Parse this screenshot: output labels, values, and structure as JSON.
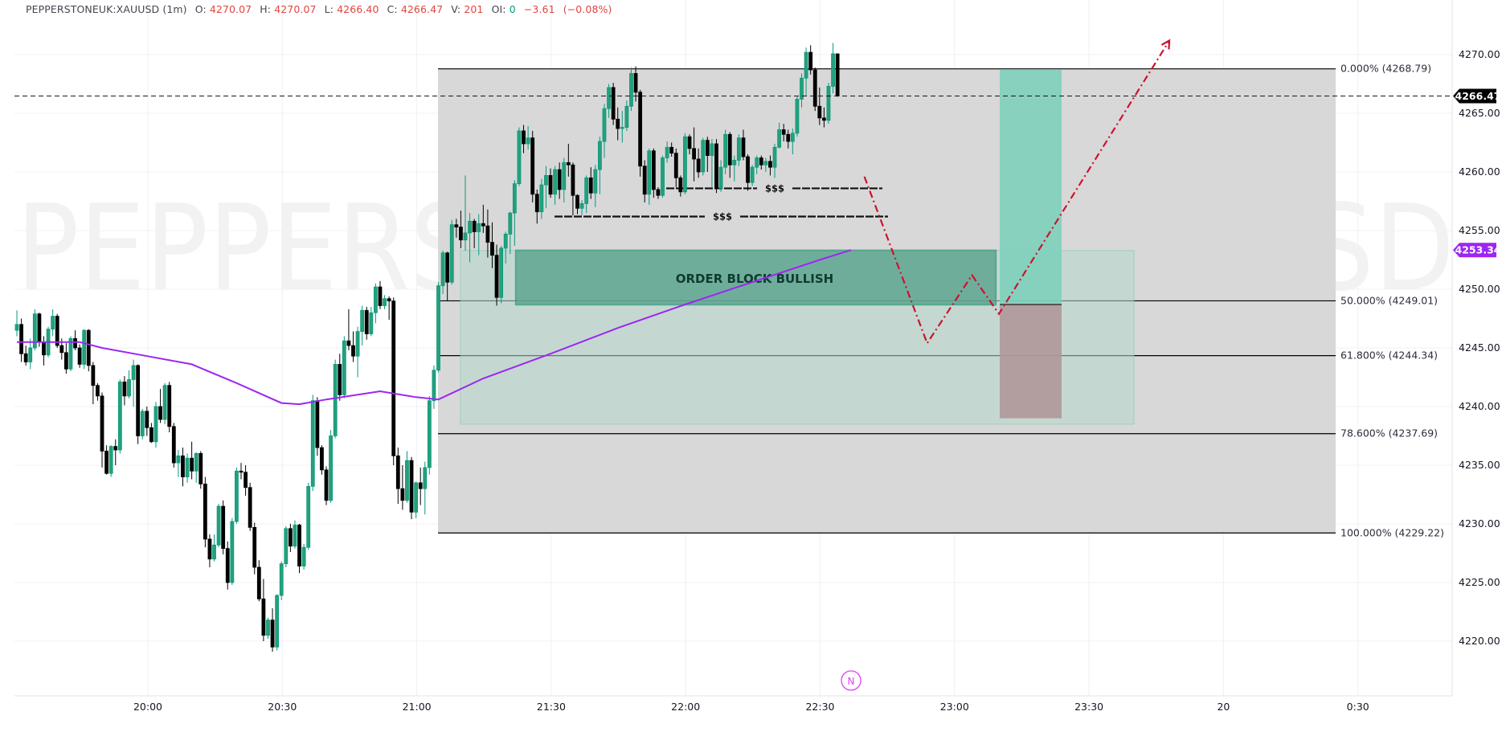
{
  "header": {
    "symbol": "PEPPERSTONEUK:XAUUSD (1m)",
    "open_label": "O:",
    "open": "4270.07",
    "high_label": "H:",
    "high": "4270.07",
    "low_label": "L:",
    "low": "4266.40",
    "close_label": "C:",
    "close": "4266.47",
    "volume_label": "V:",
    "volume": "201",
    "oi_label": "OI:",
    "oi": "0",
    "change": "−3.61",
    "change_pct": "(−0.08%)"
  },
  "watermark": {
    "symbol_text": "PEPPERSTONEUK · XAUUSD",
    "interval_text": "1m"
  },
  "colors": {
    "up": "#089981",
    "up_fill": "#26a07a",
    "down": "#000000",
    "ma": "#9c27f0",
    "fib_zone": "#d6d6d6",
    "order_block": "#5aa38e",
    "ob_zone": "#b4d8cd",
    "long_target": "#7fd0bb",
    "long_stop": "#b09898",
    "projection": "#cc1230",
    "price_tag": "#000000",
    "ma_tag": "#9c27f0"
  },
  "price_axis": {
    "ticks": [
      "4270.00",
      "4265.00",
      "4260.00",
      "4255.00",
      "4250.00",
      "4245.00",
      "4240.00",
      "4235.00",
      "4230.00",
      "4225.00",
      "4220.00"
    ],
    "current_price_tag": "4266.47",
    "ma_tag": "4253.34"
  },
  "time_axis": {
    "ticks": [
      "20:00",
      "20:30",
      "21:00",
      "21:30",
      "22:00",
      "22:30",
      "23:00",
      "23:30",
      "20",
      "0:30"
    ]
  },
  "annotations": {
    "order_block_label": "ORDER BLOCK BULLISH",
    "liquidity_labels": [
      "$$$",
      "$$$"
    ],
    "fib_levels": [
      {
        "label": "0.000% (4268.79)",
        "price": 4268.79
      },
      {
        "label": "50.000% (4249.01)",
        "price": 4249.01
      },
      {
        "label": "61.800% (4244.34)",
        "price": 4244.34
      },
      {
        "label": "78.600% (4237.69)",
        "price": 4237.69
      },
      {
        "label": "100.000% (4229.22)",
        "price": 4229.22
      }
    ],
    "news_marker": "N"
  },
  "chart_data": {
    "type": "candlestick",
    "title": "PEPPERSTONEUK:XAUUSD (1m)",
    "xlabel": "",
    "ylabel": "",
    "ylim": [
      4217,
      4274
    ],
    "x_start": "19:31",
    "interval_minutes": 1,
    "grid": true,
    "legend_position": "top-left",
    "fibonacci_retracement": {
      "from": 4268.79,
      "to": 4229.22,
      "levels": {
        "0.000%": 4268.79,
        "50.000%": 4249.01,
        "61.800%": 4244.34,
        "78.600%": 4237.69,
        "100.000%": 4229.22
      }
    },
    "moving_average_last": 4253.34,
    "last_close": 4266.47,
    "order_block": {
      "label": "ORDER BLOCK BULLISH",
      "top": 4253.3,
      "bottom": 4248.7,
      "start": "21:23",
      "end": "23:10"
    },
    "liquidity_levels": [
      {
        "label": "$$$",
        "price": 4258.6
      },
      {
        "label": "$$$",
        "price": 4256.2
      }
    ],
    "long_position": {
      "entry": 4248.7,
      "target": 4268.7,
      "stop": 4239.0,
      "start": "23:11",
      "end": "23:23"
    },
    "projection_path": [
      [
        "22:40",
        4259.6
      ],
      [
        "22:54",
        4245.4
      ],
      [
        "23:04",
        4251.2
      ],
      [
        "23:10",
        4247.9
      ],
      [
        "23:48",
        4271.2
      ]
    ],
    "candles": [
      [
        4246.5,
        4248.2,
        4246.0,
        4247.0
      ],
      [
        4247.0,
        4247.5,
        4243.8,
        4244.5
      ],
      [
        4244.5,
        4245.2,
        4243.5,
        4243.8
      ],
      [
        4243.8,
        4245.8,
        4243.2,
        4245.0
      ],
      [
        4245.0,
        4248.3,
        4244.8,
        4247.9
      ],
      [
        4247.9,
        4248.0,
        4245.1,
        4245.5
      ],
      [
        4245.5,
        4246.0,
        4243.5,
        4244.4
      ],
      [
        4244.4,
        4246.8,
        4244.2,
        4246.6
      ],
      [
        4246.6,
        4248.3,
        4246.0,
        4247.7
      ],
      [
        4247.7,
        4247.9,
        4245.0,
        4245.2
      ],
      [
        4245.2,
        4245.8,
        4244.0,
        4244.6
      ],
      [
        4244.6,
        4245.4,
        4242.8,
        4243.2
      ],
      [
        4243.2,
        4246.0,
        4243.0,
        4245.8
      ],
      [
        4245.8,
        4246.5,
        4244.8,
        4245.0
      ],
      [
        4245.0,
        4245.3,
        4243.3,
        4243.6
      ],
      [
        4243.6,
        4246.6,
        4243.2,
        4246.5
      ],
      [
        4246.5,
        4246.6,
        4243.0,
        4243.5
      ],
      [
        4243.5,
        4243.8,
        4240.2,
        4241.8
      ],
      [
        4241.8,
        4242.0,
        4240.5,
        4240.9
      ],
      [
        4240.9,
        4241.2,
        4234.8,
        4236.2
      ],
      [
        4236.2,
        4236.7,
        4234.2,
        4234.3
      ],
      [
        4234.3,
        4236.7,
        4234.0,
        4236.6
      ],
      [
        4236.6,
        4237.2,
        4235.0,
        4236.3
      ],
      [
        4236.3,
        4242.3,
        4236.0,
        4242.1
      ],
      [
        4242.1,
        4242.6,
        4240.1,
        4240.9
      ],
      [
        4240.9,
        4243.1,
        4240.7,
        4242.3
      ],
      [
        4242.3,
        4244.0,
        4240.0,
        4243.5
      ],
      [
        4243.5,
        4243.6,
        4236.8,
        4237.5
      ],
      [
        4237.5,
        4239.8,
        4237.2,
        4239.6
      ],
      [
        4239.6,
        4240.0,
        4237.5,
        4238.2
      ],
      [
        4238.2,
        4238.6,
        4236.9,
        4237.0
      ],
      [
        4237.0,
        4240.4,
        4236.5,
        4240.0
      ],
      [
        4240.0,
        4241.5,
        4238.6,
        4238.9
      ],
      [
        4238.9,
        4242.0,
        4238.5,
        4241.8
      ],
      [
        4241.8,
        4242.1,
        4237.8,
        4238.3
      ],
      [
        4238.3,
        4238.6,
        4234.8,
        4235.2
      ],
      [
        4235.2,
        4236.3,
        4234.0,
        4235.8
      ],
      [
        4235.8,
        4236.5,
        4233.2,
        4234.0
      ],
      [
        4234.0,
        4236.0,
        4233.5,
        4235.6
      ],
      [
        4235.6,
        4237.0,
        4233.8,
        4234.5
      ],
      [
        4234.5,
        4236.1,
        4233.5,
        4236.0
      ],
      [
        4236.0,
        4236.2,
        4233.0,
        4233.4
      ],
      [
        4233.4,
        4234.0,
        4228.0,
        4228.7
      ],
      [
        4228.7,
        4229.1,
        4226.3,
        4227.0
      ],
      [
        4227.0,
        4229.1,
        4226.8,
        4228.2
      ],
      [
        4228.2,
        4231.7,
        4228.0,
        4231.5
      ],
      [
        4231.5,
        4232.0,
        4227.4,
        4227.9
      ],
      [
        4227.9,
        4228.5,
        4224.4,
        4225.0
      ],
      [
        4225.0,
        4230.5,
        4224.8,
        4230.2
      ],
      [
        4230.2,
        4234.8,
        4230.0,
        4234.5
      ],
      [
        4234.5,
        4235.2,
        4233.8,
        4234.4
      ],
      [
        4234.4,
        4235.0,
        4232.4,
        4233.1
      ],
      [
        4233.1,
        4233.5,
        4229.4,
        4229.7
      ],
      [
        4229.7,
        4230.1,
        4225.7,
        4226.3
      ],
      [
        4226.3,
        4226.9,
        4223.4,
        4223.6
      ],
      [
        4223.6,
        4225.3,
        4220.0,
        4220.5
      ],
      [
        4220.5,
        4222.0,
        4220.2,
        4221.8
      ],
      [
        4221.8,
        4222.8,
        4219.1,
        4219.5
      ],
      [
        4219.5,
        4224.0,
        4219.2,
        4223.9
      ],
      [
        4223.9,
        4226.8,
        4223.5,
        4226.6
      ],
      [
        4226.6,
        4229.8,
        4226.3,
        4229.6
      ],
      [
        4229.6,
        4230.0,
        4227.6,
        4228.1
      ],
      [
        4228.1,
        4230.3,
        4227.9,
        4229.9
      ],
      [
        4229.9,
        4230.0,
        4225.8,
        4226.4
      ],
      [
        4226.4,
        4228.3,
        4226.1,
        4228.0
      ],
      [
        4228.0,
        4233.5,
        4227.8,
        4233.2
      ],
      [
        4233.2,
        4241.0,
        4232.8,
        4240.5
      ],
      [
        4240.5,
        4240.8,
        4235.8,
        4236.5
      ],
      [
        4236.5,
        4236.7,
        4234.2,
        4234.6
      ],
      [
        4234.6,
        4234.9,
        4231.6,
        4232.0
      ],
      [
        4232.0,
        4238.0,
        4231.8,
        4237.5
      ],
      [
        4237.5,
        4244.0,
        4237.3,
        4243.6
      ],
      [
        4243.6,
        4244.5,
        4240.5,
        4241.0
      ],
      [
        4241.0,
        4246.0,
        4240.7,
        4245.6
      ],
      [
        4245.6,
        4248.3,
        4244.8,
        4245.2
      ],
      [
        4245.2,
        4246.4,
        4243.8,
        4244.3
      ],
      [
        4244.3,
        4246.8,
        4242.5,
        4246.4
      ],
      [
        4246.4,
        4248.6,
        4245.2,
        4248.2
      ],
      [
        4248.2,
        4248.5,
        4245.7,
        4246.2
      ],
      [
        4246.2,
        4248.5,
        4246.0,
        4248.0
      ],
      [
        4248.0,
        4250.5,
        4247.1,
        4250.2
      ],
      [
        4250.2,
        4250.7,
        4248.3,
        4248.6
      ],
      [
        4248.6,
        4249.5,
        4248.3,
        4249.2
      ],
      [
        4249.2,
        4249.4,
        4247.4,
        4249.0
      ],
      [
        4249.0,
        4249.3,
        4235.0,
        4235.8
      ],
      [
        4235.8,
        4236.5,
        4231.7,
        4233.0
      ],
      [
        4233.0,
        4235.0,
        4231.2,
        4232.0
      ],
      [
        4232.0,
        4236.2,
        4231.8,
        4235.4
      ],
      [
        4235.4,
        4235.7,
        4230.4,
        4231.0
      ],
      [
        4231.0,
        4233.6,
        4230.5,
        4233.5
      ],
      [
        4233.5,
        4234.8,
        4231.6,
        4233.0
      ],
      [
        4233.0,
        4235.3,
        4230.8,
        4234.8
      ],
      [
        4234.8,
        4240.9,
        4234.2,
        4240.5
      ],
      [
        4240.5,
        4243.5,
        4239.8,
        4243.1
      ],
      [
        4243.1,
        4250.6,
        4242.9,
        4250.3
      ],
      [
        4250.3,
        4253.3,
        4249.6,
        4253.1
      ],
      [
        4253.1,
        4253.2,
        4249.0,
        4250.6
      ],
      [
        4250.6,
        4255.9,
        4250.4,
        4255.5
      ],
      [
        4255.5,
        4256.0,
        4254.4,
        4255.3
      ],
      [
        4255.3,
        4256.7,
        4253.5,
        4254.2
      ],
      [
        4254.2,
        4259.7,
        4253.3,
        4254.8
      ],
      [
        4254.8,
        4256.5,
        4252.3,
        4255.8
      ],
      [
        4255.8,
        4256.0,
        4253.5,
        4254.9
      ],
      [
        4254.9,
        4256.4,
        4252.9,
        4255.6
      ],
      [
        4255.6,
        4257.2,
        4254.8,
        4255.4
      ],
      [
        4255.4,
        4256.8,
        4252.7,
        4254.0
      ],
      [
        4254.0,
        4255.7,
        4251.8,
        4252.9
      ],
      [
        4252.9,
        4253.8,
        4248.6,
        4249.3
      ],
      [
        4249.3,
        4253.7,
        4248.8,
        4253.5
      ],
      [
        4253.5,
        4254.9,
        4252.2,
        4254.7
      ],
      [
        4254.7,
        4256.6,
        4253.0,
        4256.5
      ],
      [
        4256.5,
        4259.3,
        4253.7,
        4259.0
      ],
      [
        4259.0,
        4263.8,
        4258.8,
        4263.5
      ],
      [
        4263.5,
        4264.0,
        4261.6,
        4262.4
      ],
      [
        4262.4,
        4263.9,
        4261.9,
        4262.9
      ],
      [
        4262.9,
        4263.5,
        4257.4,
        4258.1
      ],
      [
        4258.1,
        4258.5,
        4255.6,
        4256.6
      ],
      [
        4256.6,
        4259.4,
        4256.0,
        4258.9
      ],
      [
        4258.9,
        4260.5,
        4256.9,
        4259.7
      ],
      [
        4259.7,
        4260.3,
        4257.8,
        4258.1
      ],
      [
        4258.1,
        4260.5,
        4257.2,
        4260.2
      ],
      [
        4260.2,
        4260.8,
        4257.7,
        4258.5
      ],
      [
        4258.5,
        4261.2,
        4257.4,
        4260.8
      ],
      [
        4260.8,
        4262.4,
        4259.6,
        4260.6
      ],
      [
        4260.6,
        4260.8,
        4256.3,
        4258.0
      ],
      [
        4258.0,
        4258.1,
        4256.4,
        4256.9
      ],
      [
        4256.9,
        4257.6,
        4256.3,
        4257.3
      ],
      [
        4257.3,
        4259.7,
        4256.5,
        4259.5
      ],
      [
        4259.5,
        4260.4,
        4257.7,
        4258.2
      ],
      [
        4258.2,
        4260.6,
        4257.0,
        4260.2
      ],
      [
        4260.2,
        4263.0,
        4258.1,
        4262.6
      ],
      [
        4262.6,
        4265.8,
        4261.2,
        4265.4
      ],
      [
        4265.4,
        4267.5,
        4264.6,
        4267.2
      ],
      [
        4267.2,
        4267.6,
        4264.0,
        4264.5
      ],
      [
        4264.5,
        4265.5,
        4262.7,
        4263.7
      ],
      [
        4263.7,
        4265.2,
        4262.5,
        4263.8
      ],
      [
        4263.8,
        4266.1,
        4263.5,
        4265.6
      ],
      [
        4265.6,
        4268.9,
        4265.2,
        4268.4
      ],
      [
        4268.4,
        4269.0,
        4266.0,
        4266.8
      ],
      [
        4266.8,
        4267.0,
        4259.6,
        4260.5
      ],
      [
        4260.5,
        4261.0,
        4257.4,
        4258.1
      ],
      [
        4258.1,
        4262.0,
        4257.2,
        4261.8
      ],
      [
        4261.8,
        4262.0,
        4257.8,
        4258.5
      ],
      [
        4258.5,
        4258.7,
        4257.7,
        4258.0
      ],
      [
        4258.0,
        4261.4,
        4257.8,
        4261.2
      ],
      [
        4261.2,
        4262.6,
        4260.8,
        4262.1
      ],
      [
        4262.1,
        4262.5,
        4261.3,
        4261.6
      ],
      [
        4261.6,
        4262.0,
        4258.7,
        4259.5
      ],
      [
        4259.5,
        4259.7,
        4257.9,
        4258.3
      ],
      [
        4258.3,
        4263.3,
        4258.1,
        4263.0
      ],
      [
        4263.0,
        4263.2,
        4261.5,
        4262.0
      ],
      [
        4262.0,
        4263.8,
        4259.2,
        4261.1
      ],
      [
        4261.1,
        4262.0,
        4259.5,
        4260.0
      ],
      [
        4260.0,
        4262.9,
        4259.7,
        4262.7
      ],
      [
        4262.7,
        4263.0,
        4260.0,
        4261.4
      ],
      [
        4261.4,
        4262.8,
        4258.7,
        4262.4
      ],
      [
        4262.4,
        4262.8,
        4258.2,
        4258.6
      ],
      [
        4258.6,
        4261.0,
        4258.3,
        4260.4
      ],
      [
        4260.4,
        4263.6,
        4259.8,
        4263.2
      ],
      [
        4263.2,
        4263.4,
        4259.5,
        4260.6
      ],
      [
        4260.6,
        4261.4,
        4259.2,
        4261.0
      ],
      [
        4261.0,
        4263.2,
        4260.5,
        4262.9
      ],
      [
        4262.9,
        4263.6,
        4261.0,
        4261.3
      ],
      [
        4261.3,
        4261.5,
        4258.4,
        4259.1
      ],
      [
        4259.1,
        4260.6,
        4258.8,
        4260.4
      ],
      [
        4260.4,
        4261.4,
        4259.8,
        4261.2
      ],
      [
        4261.2,
        4261.4,
        4260.2,
        4260.6
      ],
      [
        4260.6,
        4261.2,
        4260.0,
        4260.9
      ],
      [
        4260.9,
        4261.4,
        4259.7,
        4260.4
      ],
      [
        4260.4,
        4262.4,
        4259.5,
        4262.1
      ],
      [
        4262.1,
        4264.2,
        4262.0,
        4263.6
      ],
      [
        4263.6,
        4264.1,
        4262.6,
        4263.2
      ],
      [
        4263.2,
        4263.6,
        4262.0,
        4262.6
      ],
      [
        4262.6,
        4263.7,
        4261.5,
        4263.3
      ],
      [
        4263.3,
        4266.5,
        4263.0,
        4266.2
      ],
      [
        4266.2,
        4268.4,
        4265.5,
        4268.0
      ],
      [
        4268.0,
        4270.6,
        4266.5,
        4270.2
      ],
      [
        4270.2,
        4270.8,
        4268.3,
        4268.7
      ],
      [
        4268.7,
        4268.9,
        4265.2,
        4265.6
      ],
      [
        4265.6,
        4267.2,
        4264.0,
        4264.6
      ],
      [
        4264.6,
        4265.5,
        4263.8,
        4264.4
      ],
      [
        4264.4,
        4267.6,
        4264.1,
        4267.3
      ],
      [
        4267.3,
        4271.0,
        4266.7,
        4270.07
      ],
      [
        4270.07,
        4270.07,
        4266.4,
        4266.47
      ]
    ],
    "ma_points": [
      [
        "19:31",
        4245.5
      ],
      [
        "19:45",
        4245.5
      ],
      [
        "19:50",
        4245.0
      ],
      [
        "20:00",
        4244.3
      ],
      [
        "20:10",
        4243.6
      ],
      [
        "20:20",
        4242.0
      ],
      [
        "20:30",
        4240.3
      ],
      [
        "20:34",
        4240.2
      ],
      [
        "20:40",
        4240.6
      ],
      [
        "20:52",
        4241.3
      ],
      [
        "21:00",
        4240.8
      ],
      [
        "21:05",
        4240.6
      ],
      [
        "21:15",
        4242.4
      ],
      [
        "21:30",
        4244.5
      ],
      [
        "21:45",
        4246.7
      ],
      [
        "22:00",
        4248.7
      ],
      [
        "22:15",
        4250.6
      ],
      [
        "22:30",
        4252.5
      ],
      [
        "22:37",
        4253.34
      ]
    ]
  }
}
